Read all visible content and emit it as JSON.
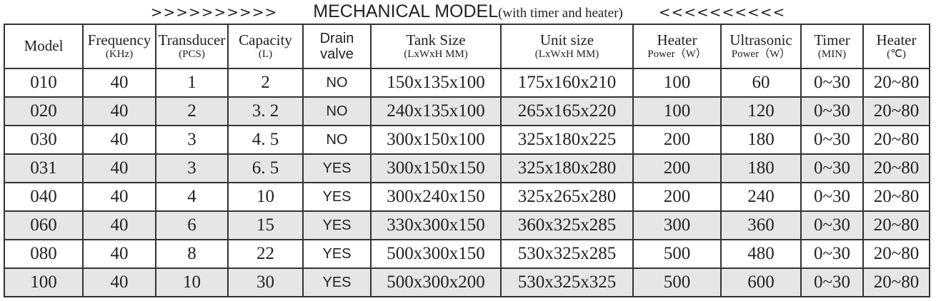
{
  "title": {
    "left_arrows": ">>>>>>>>>>",
    "main": "MECHANICAL MODEL",
    "note": "(with timer and heater)",
    "right_arrows": "<<<<<<<<<<"
  },
  "table": {
    "header": [
      {
        "main": "Model"
      },
      {
        "main": "Frequency",
        "sub": "(KHz)"
      },
      {
        "main": "Transducer",
        "sub": "(PCS)"
      },
      {
        "main": "Capacity",
        "sub": "(L)"
      },
      {
        "main": "Drain valve"
      },
      {
        "main": "Tank Size",
        "sub": "(LxWxH MM)"
      },
      {
        "main": "Unit size",
        "sub": "(LxWxH MM)"
      },
      {
        "main": "Heater",
        "sub": "Power（W）"
      },
      {
        "main": "Ultrasonic",
        "sub": "Power（W）"
      },
      {
        "main": "Timer",
        "sub": "(MIN)"
      },
      {
        "main": "Heater",
        "sub": "(℃)"
      }
    ],
    "rows": [
      [
        "010",
        "40",
        "1",
        "2",
        "NO",
        "150x135x100",
        "175x160x210",
        "100",
        "60",
        "0~30",
        "20~80"
      ],
      [
        "020",
        "40",
        "2",
        "3. 2",
        "NO",
        "240x135x100",
        "265x165x220",
        "100",
        "120",
        "0~30",
        "20~80"
      ],
      [
        "030",
        "40",
        "3",
        "4. 5",
        "NO",
        "300x150x100",
        "325x180x225",
        "200",
        "180",
        "0~30",
        "20~80"
      ],
      [
        "031",
        "40",
        "3",
        "6. 5",
        "YES",
        "300x150x150",
        "325x180x280",
        "200",
        "180",
        "0~30",
        "20~80"
      ],
      [
        "040",
        "40",
        "4",
        "10",
        "YES",
        "300x240x150",
        "325x265x280",
        "200",
        "240",
        "0~30",
        "20~80"
      ],
      [
        "060",
        "40",
        "6",
        "15",
        "YES",
        "330x300x150",
        "360x325x285",
        "300",
        "360",
        "0~30",
        "20~80"
      ],
      [
        "080",
        "40",
        "8",
        "22",
        "YES",
        "500x300x150",
        "530x325x285",
        "500",
        "480",
        "0~30",
        "20~80"
      ],
      [
        "100",
        "40",
        "10",
        "30",
        "YES",
        "500x300x200",
        "530x325x325",
        "500",
        "600",
        "0~30",
        "20~80"
      ]
    ]
  }
}
